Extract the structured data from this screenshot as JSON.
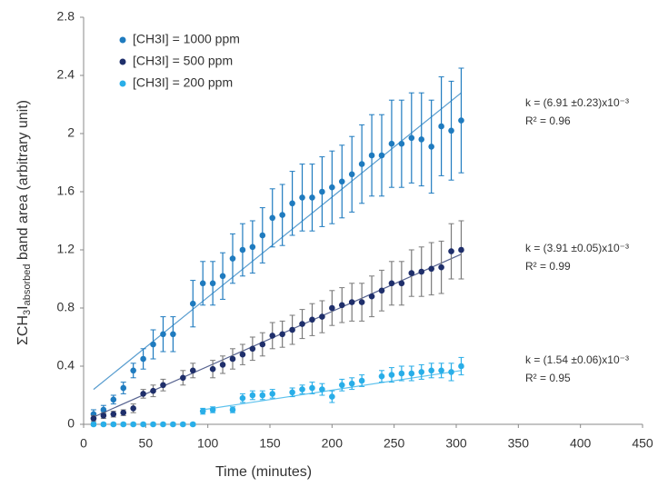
{
  "chart_data": {
    "type": "scatter",
    "ylabel": [
      "ΣCH",
      "3",
      "I",
      "absorbed",
      " band area (arbitrary unit)"
    ],
    "xlabel": "Time (minutes)",
    "xlim": [
      0,
      450
    ],
    "xticks": [
      0,
      50,
      100,
      150,
      200,
      250,
      300,
      350,
      400,
      450
    ],
    "ylim": [
      0,
      2.8
    ],
    "yticks": [
      0,
      0.4,
      0.8,
      1.2,
      1.6,
      2,
      2.4,
      2.8
    ],
    "grid": false,
    "legend": "upper-left",
    "series": [
      {
        "name": "[CH3I] = 1000 ppm",
        "color": "#1f7bbf",
        "error_color": "#1f7bbf",
        "x": [
          8,
          16,
          24,
          32,
          40,
          48,
          56,
          64,
          72,
          88,
          96,
          104,
          112,
          120,
          128,
          136,
          144,
          152,
          160,
          168,
          176,
          184,
          192,
          200,
          208,
          216,
          224,
          232,
          240,
          248,
          256,
          264,
          272,
          280,
          288,
          296,
          304
        ],
        "values": [
          0.07,
          0.1,
          0.17,
          0.25,
          0.37,
          0.45,
          0.55,
          0.62,
          0.62,
          0.83,
          0.97,
          0.97,
          1.02,
          1.14,
          1.2,
          1.22,
          1.3,
          1.42,
          1.44,
          1.52,
          1.56,
          1.56,
          1.6,
          1.63,
          1.67,
          1.72,
          1.79,
          1.85,
          1.85,
          1.93,
          1.93,
          1.97,
          1.96,
          1.91,
          2.05,
          2.02,
          2.09
        ],
        "errors": [
          0.03,
          0.03,
          0.03,
          0.04,
          0.05,
          0.07,
          0.1,
          0.12,
          0.12,
          0.16,
          0.15,
          0.15,
          0.16,
          0.17,
          0.18,
          0.18,
          0.19,
          0.2,
          0.21,
          0.22,
          0.23,
          0.23,
          0.24,
          0.25,
          0.25,
          0.26,
          0.27,
          0.28,
          0.28,
          0.3,
          0.3,
          0.31,
          0.32,
          0.32,
          0.34,
          0.34,
          0.36
        ],
        "trend": {
          "x": [
            8,
            304
          ],
          "y": [
            0.24,
            2.28
          ]
        },
        "k_label": "k = (6.91 ±0.23)x10⁻³",
        "r2_label": "R² = 0.96"
      },
      {
        "name": "[CH3I] = 500 ppm",
        "color": "#1f2f6b",
        "error_color": "#7a7a7a",
        "x": [
          8,
          16,
          24,
          32,
          40,
          48,
          56,
          64,
          80,
          88,
          104,
          112,
          120,
          128,
          136,
          144,
          152,
          160,
          168,
          176,
          184,
          192,
          200,
          208,
          216,
          224,
          232,
          240,
          248,
          256,
          264,
          272,
          280,
          288,
          296,
          304
        ],
        "values": [
          0.04,
          0.06,
          0.07,
          0.08,
          0.11,
          0.21,
          0.23,
          0.27,
          0.32,
          0.37,
          0.38,
          0.41,
          0.45,
          0.48,
          0.52,
          0.55,
          0.61,
          0.62,
          0.65,
          0.69,
          0.72,
          0.74,
          0.8,
          0.82,
          0.84,
          0.84,
          0.88,
          0.92,
          0.97,
          0.97,
          1.04,
          1.05,
          1.07,
          1.08,
          1.19,
          1.2
        ],
        "errors": [
          0.02,
          0.02,
          0.02,
          0.02,
          0.03,
          0.03,
          0.04,
          0.04,
          0.05,
          0.05,
          0.06,
          0.06,
          0.07,
          0.07,
          0.08,
          0.08,
          0.09,
          0.09,
          0.1,
          0.1,
          0.11,
          0.11,
          0.12,
          0.12,
          0.13,
          0.13,
          0.14,
          0.14,
          0.15,
          0.15,
          0.16,
          0.17,
          0.18,
          0.18,
          0.19,
          0.2
        ],
        "trend": {
          "x": [
            8,
            304
          ],
          "y": [
            0.05,
            1.17
          ]
        },
        "k_label": "k = (3.91 ±0.05)x10⁻³",
        "r2_label": "R² = 0.99"
      },
      {
        "name": "[CH3I] = 200 ppm",
        "color": "#29aee8",
        "error_color": "#29aee8",
        "x": [
          8,
          16,
          24,
          32,
          40,
          48,
          56,
          64,
          72,
          80,
          88,
          96,
          104,
          120,
          128,
          136,
          144,
          152,
          168,
          176,
          184,
          192,
          200,
          208,
          216,
          224,
          240,
          248,
          256,
          264,
          272,
          280,
          288,
          296,
          304
        ],
        "values": [
          0,
          0,
          0,
          0,
          0,
          0,
          0,
          0,
          0,
          0,
          0,
          0.09,
          0.1,
          0.1,
          0.18,
          0.2,
          0.2,
          0.21,
          0.22,
          0.24,
          0.25,
          0.24,
          0.19,
          0.27,
          0.28,
          0.3,
          0.33,
          0.34,
          0.35,
          0.35,
          0.36,
          0.37,
          0.37,
          0.36,
          0.4
        ],
        "errors": [
          0.01,
          0.01,
          0.01,
          0.01,
          0.01,
          0.01,
          0.01,
          0.01,
          0.01,
          0.01,
          0.01,
          0.02,
          0.02,
          0.02,
          0.03,
          0.03,
          0.03,
          0.03,
          0.03,
          0.03,
          0.04,
          0.04,
          0.04,
          0.04,
          0.04,
          0.04,
          0.04,
          0.05,
          0.05,
          0.05,
          0.05,
          0.05,
          0.05,
          0.06,
          0.06
        ],
        "trend": {
          "x": [
            96,
            304
          ],
          "y": [
            0.1,
            0.37
          ]
        },
        "k_label": "k = (1.54 ±0.06)x10⁻³",
        "r2_label": "R² = 0.95"
      }
    ]
  }
}
